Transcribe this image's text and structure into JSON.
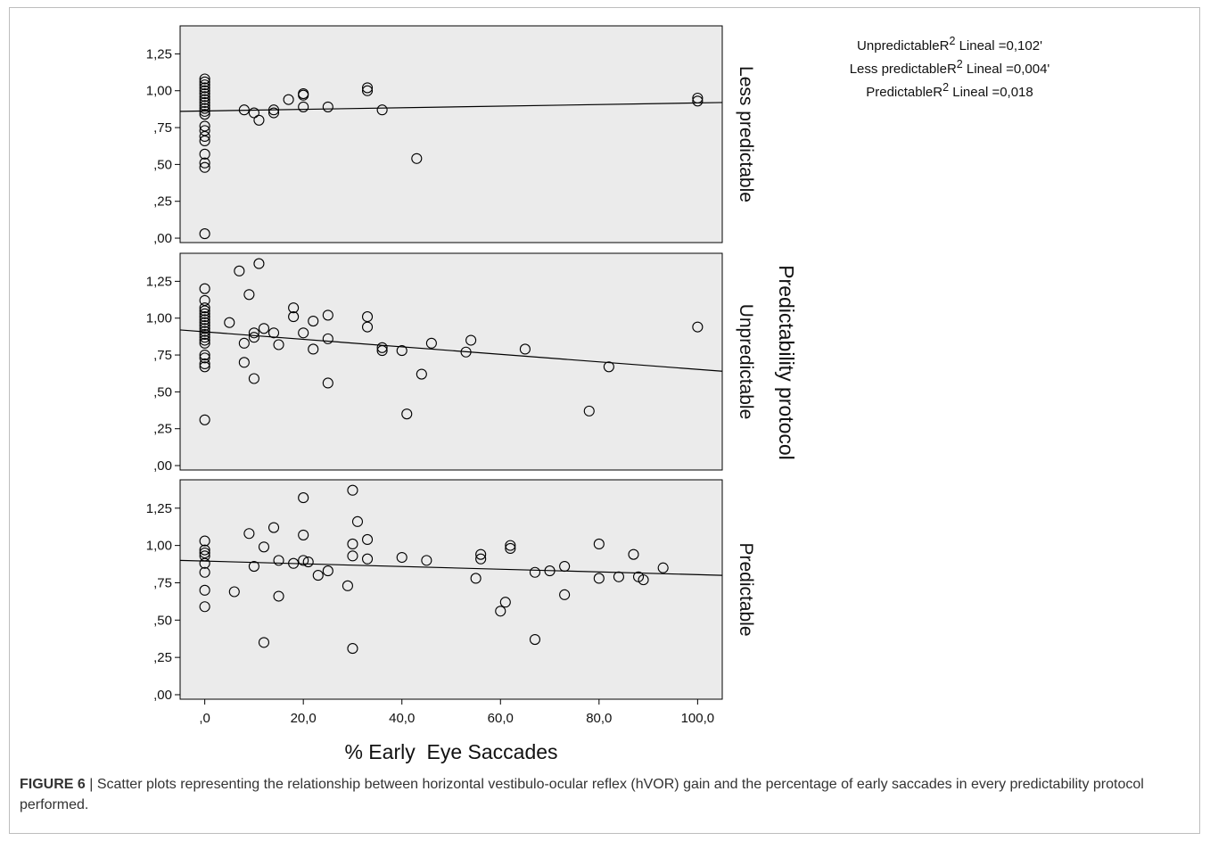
{
  "figure": {
    "label": "FIGURE 6",
    "separator": " | ",
    "caption": "Scatter plots representing the relationship between horizontal vestibulo-ocular reflex (hVOR) gain and the percentage of early saccades in every predictability protocol performed."
  },
  "r2_legend": [
    {
      "group": "Unpredictable",
      "label": "R",
      "sup": "2",
      "rest": " Lineal =0,102'"
    },
    {
      "group": "Less predictable",
      "label": "R",
      "sup": "2",
      "rest": " Lineal =0,004'"
    },
    {
      "group": "Predictable",
      "label": "R",
      "sup": "2",
      "rest": " Lineal =0,018"
    }
  ],
  "chart_data": {
    "type": "scatter",
    "xlabel": "% Early  Eye Saccades",
    "facet_label": "Predictability protocol",
    "xlim": [
      -5,
      105
    ],
    "ylim": [
      -0.03,
      1.44
    ],
    "x_ticks": [
      {
        "value": 0,
        "label": ",0"
      },
      {
        "value": 20,
        "label": "20,0"
      },
      {
        "value": 40,
        "label": "40,0"
      },
      {
        "value": 60,
        "label": "60,0"
      },
      {
        "value": 80,
        "label": "80,0"
      },
      {
        "value": 100,
        "label": "100,0"
      }
    ],
    "y_ticks": [
      {
        "value": 0,
        "label": ",00"
      },
      {
        "value": 0.25,
        "label": ",25"
      },
      {
        "value": 0.5,
        "label": ",50"
      },
      {
        "value": 0.75,
        "label": ",75"
      },
      {
        "value": 1.0,
        "label": "1,00"
      },
      {
        "value": 1.25,
        "label": "1,25"
      }
    ],
    "grid": false,
    "colors": {
      "panel_bg": "#ebebeb",
      "marker": "#000000",
      "line": "#000000"
    },
    "panels": [
      {
        "name": "Less predictable",
        "fit_line": {
          "x": [
            -5,
            105
          ],
          "y": [
            0.86,
            0.92
          ]
        },
        "points": [
          [
            0,
            1.08
          ],
          [
            0,
            1.06
          ],
          [
            0,
            1.04
          ],
          [
            0,
            1.02
          ],
          [
            0,
            1.0
          ],
          [
            0,
            0.98
          ],
          [
            0,
            0.96
          ],
          [
            0,
            0.94
          ],
          [
            0,
            0.92
          ],
          [
            0,
            0.9
          ],
          [
            0,
            0.88
          ],
          [
            0,
            0.86
          ],
          [
            0,
            0.84
          ],
          [
            0,
            0.76
          ],
          [
            0,
            0.73
          ],
          [
            0,
            0.69
          ],
          [
            0,
            0.66
          ],
          [
            0,
            0.57
          ],
          [
            0,
            0.51
          ],
          [
            0,
            0.48
          ],
          [
            0,
            0.03
          ],
          [
            8,
            0.87
          ],
          [
            10,
            0.85
          ],
          [
            11,
            0.8
          ],
          [
            14,
            0.87
          ],
          [
            14,
            0.85
          ],
          [
            17,
            0.94
          ],
          [
            20,
            0.98
          ],
          [
            20,
            0.97
          ],
          [
            20,
            0.89
          ],
          [
            25,
            0.89
          ],
          [
            33,
            1.02
          ],
          [
            33,
            1.0
          ],
          [
            36,
            0.87
          ],
          [
            43,
            0.54
          ],
          [
            100,
            0.95
          ],
          [
            100,
            0.93
          ]
        ]
      },
      {
        "name": "Unpredictable",
        "fit_line": {
          "x": [
            -5,
            105
          ],
          "y": [
            0.92,
            0.64
          ]
        },
        "points": [
          [
            0,
            1.2
          ],
          [
            0,
            1.12
          ],
          [
            0,
            1.07
          ],
          [
            0,
            1.05
          ],
          [
            0,
            1.03
          ],
          [
            0,
            1.01
          ],
          [
            0,
            0.99
          ],
          [
            0,
            0.97
          ],
          [
            0,
            0.95
          ],
          [
            0,
            0.93
          ],
          [
            0,
            0.91
          ],
          [
            0,
            0.89
          ],
          [
            0,
            0.87
          ],
          [
            0,
            0.85
          ],
          [
            0,
            0.83
          ],
          [
            0,
            0.75
          ],
          [
            0,
            0.73
          ],
          [
            0,
            0.69
          ],
          [
            0,
            0.67
          ],
          [
            0,
            0.31
          ],
          [
            5,
            0.97
          ],
          [
            7,
            1.32
          ],
          [
            8,
            0.83
          ],
          [
            8,
            0.7
          ],
          [
            9,
            1.16
          ],
          [
            10,
            0.9
          ],
          [
            10,
            0.87
          ],
          [
            10,
            0.59
          ],
          [
            11,
            1.37
          ],
          [
            12,
            0.93
          ],
          [
            14,
            0.9
          ],
          [
            15,
            0.82
          ],
          [
            18,
            1.07
          ],
          [
            18,
            1.01
          ],
          [
            20,
            0.9
          ],
          [
            22,
            0.98
          ],
          [
            22,
            0.79
          ],
          [
            25,
            1.02
          ],
          [
            25,
            0.86
          ],
          [
            25,
            0.56
          ],
          [
            33,
            1.01
          ],
          [
            33,
            0.94
          ],
          [
            36,
            0.8
          ],
          [
            36,
            0.78
          ],
          [
            40,
            0.78
          ],
          [
            41,
            0.35
          ],
          [
            44,
            0.62
          ],
          [
            46,
            0.83
          ],
          [
            53,
            0.77
          ],
          [
            54,
            0.85
          ],
          [
            65,
            0.79
          ],
          [
            78,
            0.37
          ],
          [
            82,
            0.67
          ],
          [
            100,
            0.94
          ]
        ]
      },
      {
        "name": "Predictable",
        "fit_line": {
          "x": [
            -5,
            105
          ],
          "y": [
            0.9,
            0.8
          ]
        },
        "points": [
          [
            0,
            1.03
          ],
          [
            0,
            0.97
          ],
          [
            0,
            0.95
          ],
          [
            0,
            0.93
          ],
          [
            0,
            0.88
          ],
          [
            0,
            0.82
          ],
          [
            0,
            0.7
          ],
          [
            0,
            0.59
          ],
          [
            6,
            0.69
          ],
          [
            9,
            1.08
          ],
          [
            10,
            0.86
          ],
          [
            12,
            0.99
          ],
          [
            12,
            0.35
          ],
          [
            14,
            1.12
          ],
          [
            15,
            0.9
          ],
          [
            15,
            0.66
          ],
          [
            18,
            0.88
          ],
          [
            20,
            1.32
          ],
          [
            20,
            1.07
          ],
          [
            20,
            0.9
          ],
          [
            21,
            0.89
          ],
          [
            23,
            0.8
          ],
          [
            25,
            0.83
          ],
          [
            29,
            0.73
          ],
          [
            30,
            1.37
          ],
          [
            30,
            1.01
          ],
          [
            30,
            0.93
          ],
          [
            30,
            0.31
          ],
          [
            31,
            1.16
          ],
          [
            33,
            1.04
          ],
          [
            33,
            0.91
          ],
          [
            40,
            0.92
          ],
          [
            45,
            0.9
          ],
          [
            55,
            0.78
          ],
          [
            56,
            0.94
          ],
          [
            56,
            0.91
          ],
          [
            60,
            0.56
          ],
          [
            61,
            0.62
          ],
          [
            62,
            1.0
          ],
          [
            62,
            0.98
          ],
          [
            67,
            0.82
          ],
          [
            67,
            0.37
          ],
          [
            70,
            0.83
          ],
          [
            73,
            0.86
          ],
          [
            73,
            0.67
          ],
          [
            80,
            1.01
          ],
          [
            80,
            0.78
          ],
          [
            84,
            0.79
          ],
          [
            87,
            0.94
          ],
          [
            88,
            0.79
          ],
          [
            89,
            0.77
          ],
          [
            93,
            0.85
          ]
        ]
      }
    ]
  }
}
